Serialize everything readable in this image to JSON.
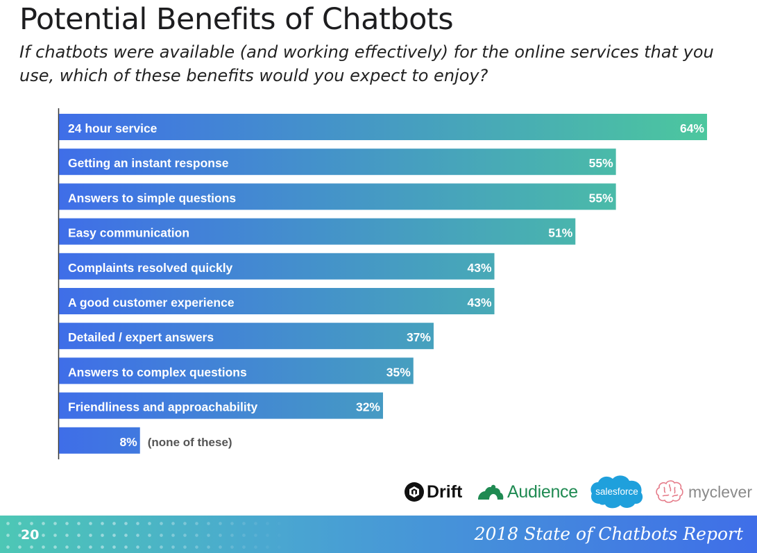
{
  "header": {
    "title": "Potential Benefits of Chatbots",
    "subtitle": "If chatbots were available (and working effectively) for the online services that you use, which of these benefits would you expect to enjoy?"
  },
  "chart_data": {
    "type": "bar",
    "orientation": "horizontal",
    "categories": [
      "24 hour service",
      "Getting an instant response",
      "Answers to simple questions",
      "Easy communication",
      "Complaints resolved quickly",
      "A good customer experience",
      "Detailed / expert answers",
      "Answers to complex questions",
      "Friendliness and approachability",
      ""
    ],
    "values": [
      64,
      55,
      55,
      51,
      43,
      43,
      37,
      35,
      32,
      8
    ],
    "value_labels": [
      "64%",
      "55%",
      "55%",
      "51%",
      "43%",
      "43%",
      "37%",
      "35%",
      "32%",
      "8%"
    ],
    "notes": [
      "",
      "",
      "",
      "",
      "",
      "",
      "",
      "",
      "",
      "(none of these)"
    ],
    "title": "",
    "xlabel": "",
    "ylabel": "",
    "xlim": [
      0,
      64
    ],
    "grid": false,
    "legend": "none",
    "colors": {
      "gradient_start": "#3f6ee8",
      "gradient_end": "#4cc79e",
      "axis": "#333333",
      "note": "#555555"
    }
  },
  "logos": {
    "drift": "Drift",
    "audience": "Audience",
    "salesforce": "salesforce",
    "myclever": "myclever"
  },
  "footer": {
    "page_number": "20",
    "report_title": "2018 State of Chatbots Report"
  }
}
